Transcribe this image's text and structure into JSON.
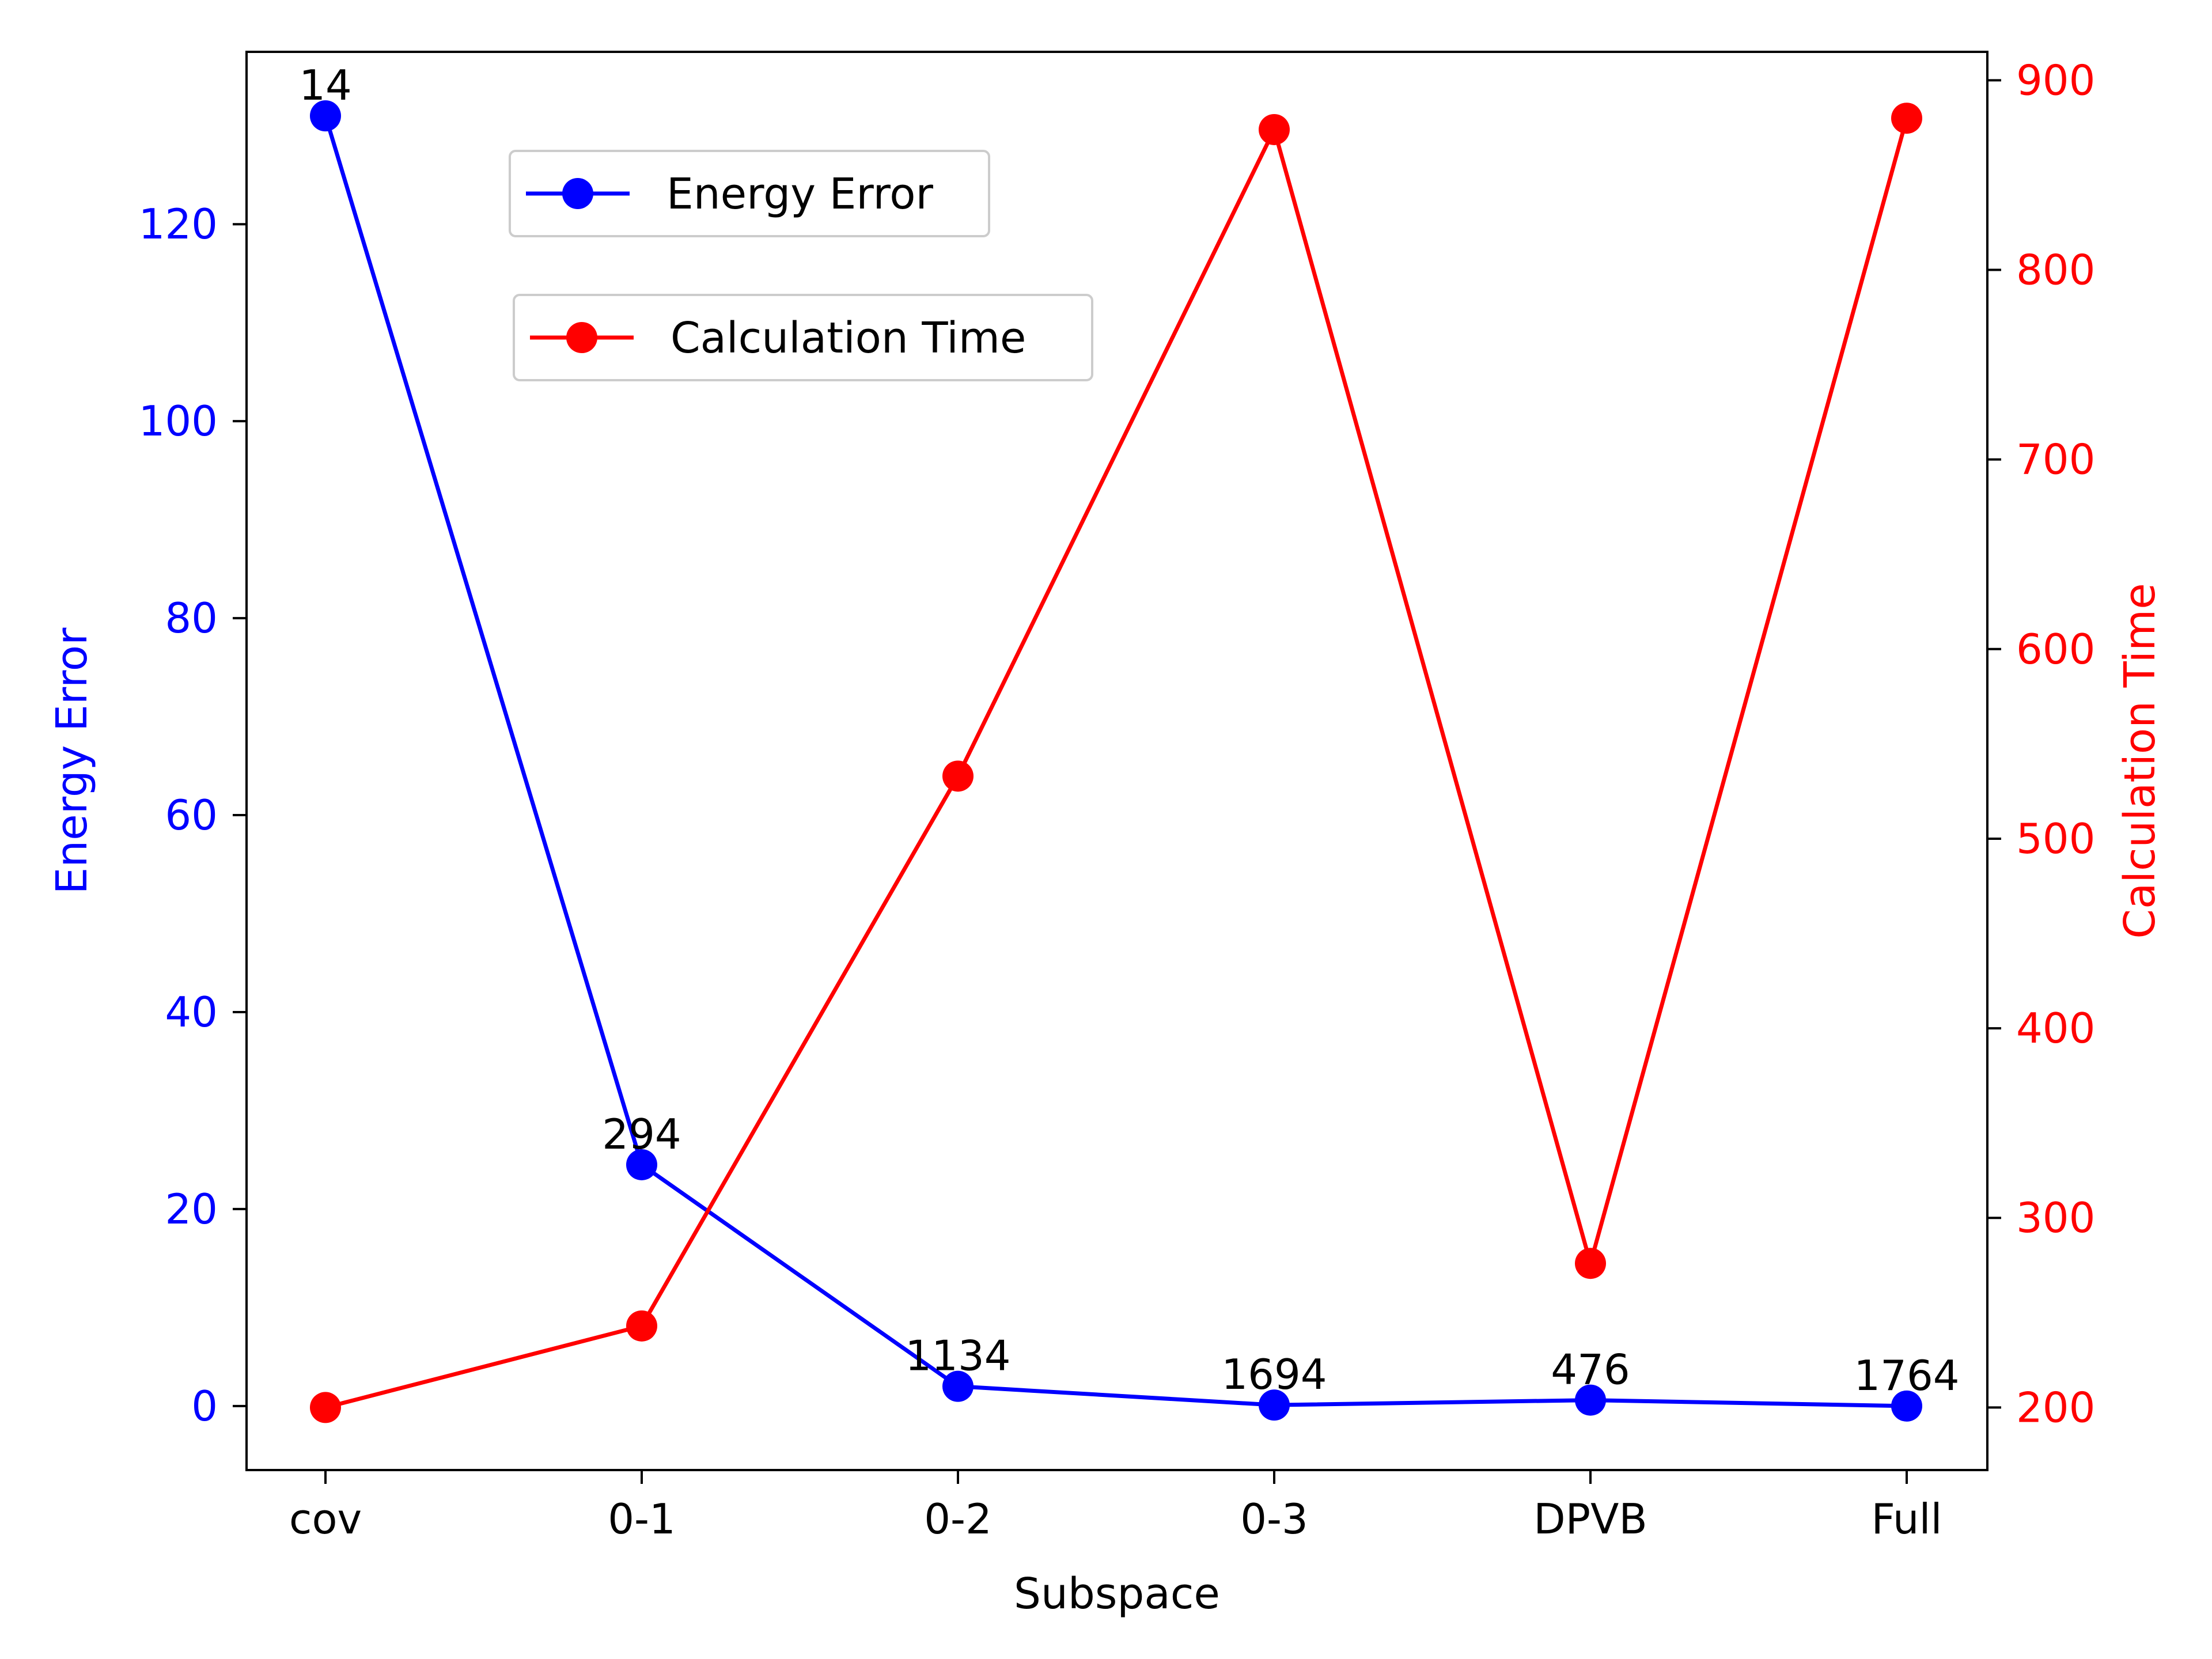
{
  "chart_data": {
    "type": "line",
    "xlabel": "Subspace",
    "categories": [
      "cov",
      "0-1",
      "0-2",
      "0-3",
      "DPVB",
      "Full"
    ],
    "point_labels": [
      "14",
      "294",
      "1134",
      "1694",
      "476",
      "1764"
    ],
    "series": [
      {
        "name": "Energy Error",
        "axis": "left",
        "color": "#0000ff",
        "values": [
          131,
          24.5,
          2.0,
          0.1,
          0.6,
          0.0
        ]
      },
      {
        "name": "Calculation Time",
        "axis": "right",
        "color": "#ff0000",
        "values": [
          200,
          243,
          533,
          874,
          276,
          880
        ]
      }
    ],
    "y_left": {
      "label": "Energy Error",
      "color": "#0000ff",
      "ylim": [
        -6.5,
        137.5
      ],
      "ticks": [
        0,
        20,
        40,
        60,
        80,
        100,
        120
      ]
    },
    "y_right": {
      "label": "Calculation Time",
      "color": "#ff0000",
      "ylim": [
        167,
        915
      ],
      "ticks": [
        200,
        300,
        400,
        500,
        600,
        700,
        800,
        900
      ]
    },
    "legend_placement": "upper-left",
    "grid": false
  }
}
